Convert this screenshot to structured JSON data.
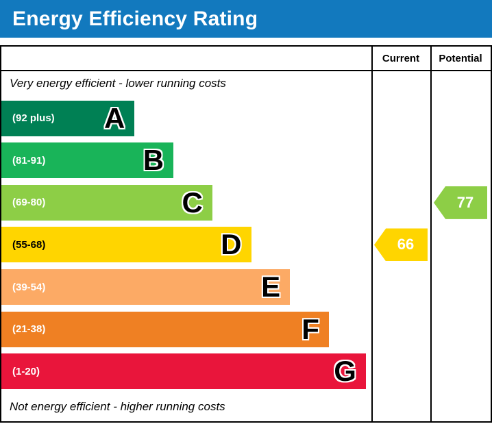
{
  "header": {
    "title": "Energy Efficiency Rating",
    "bg_color": "#1279be"
  },
  "table": {
    "current_label": "Current",
    "potential_label": "Potential",
    "top_note": "Very energy efficient - lower running costs",
    "bottom_note": "Not energy efficient - higher running costs"
  },
  "chart_data": {
    "type": "bar",
    "title": "Energy Efficiency Rating",
    "bands": [
      {
        "letter": "A",
        "label": "(92 plus)",
        "range": [
          92,
          100
        ],
        "color": "#008054",
        "width_pct": 36,
        "label_color": "#ffffff"
      },
      {
        "letter": "B",
        "label": "(81-91)",
        "range": [
          81,
          91
        ],
        "color": "#19b459",
        "width_pct": 46.5,
        "label_color": "#ffffff"
      },
      {
        "letter": "C",
        "label": "(69-80)",
        "range": [
          69,
          80
        ],
        "color": "#8dce46",
        "width_pct": 57,
        "label_color": "#ffffff"
      },
      {
        "letter": "D",
        "label": "(55-68)",
        "range": [
          55,
          68
        ],
        "color": "#ffd500",
        "width_pct": 67.5,
        "label_color": "#000000"
      },
      {
        "letter": "E",
        "label": "(39-54)",
        "range": [
          39,
          54
        ],
        "color": "#fcaa65",
        "width_pct": 78,
        "label_color": "#ffffff"
      },
      {
        "letter": "F",
        "label": "(21-38)",
        "range": [
          21,
          38
        ],
        "color": "#ef8023",
        "width_pct": 88.5,
        "label_color": "#ffffff"
      },
      {
        "letter": "G",
        "label": "(1-20)",
        "range": [
          1,
          20
        ],
        "color": "#e9153b",
        "width_pct": 98.5,
        "label_color": "#ffffff"
      }
    ],
    "current": {
      "value": "66",
      "band": "D",
      "band_index": 3,
      "color": "#ffd500"
    },
    "potential": {
      "value": "77",
      "band": "C",
      "band_index": 2,
      "color": "#8dce46"
    }
  }
}
